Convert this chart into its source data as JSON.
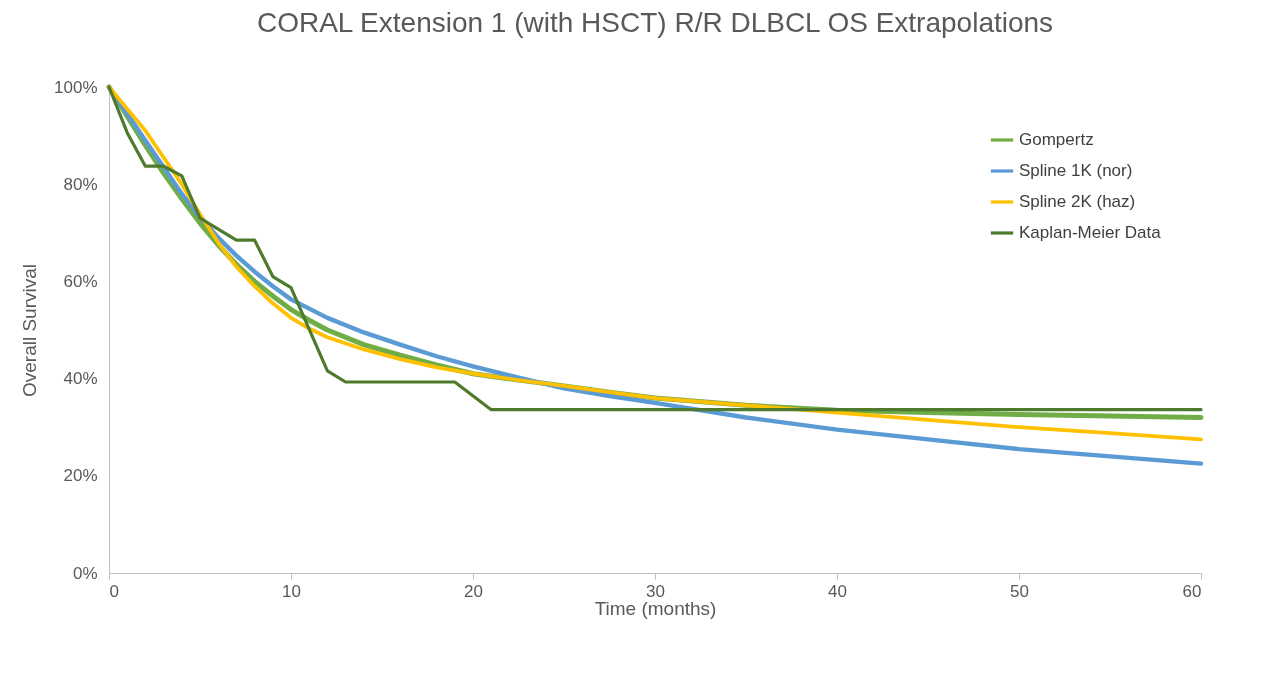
{
  "chart_data": {
    "type": "line",
    "title": "CORAL Extension 1 (with HSCT) R/R DLBCL OS Extrapolations",
    "xlabel": "Time (months)",
    "ylabel": "Overall Survival",
    "xlim": [
      0,
      60
    ],
    "xticks": [
      0,
      10,
      20,
      30,
      40,
      50,
      60
    ],
    "ylim": [
      0,
      100
    ],
    "yticks": [
      {
        "value": 0,
        "label": "0%"
      },
      {
        "value": 20,
        "label": "20%"
      },
      {
        "value": 40,
        "label": "40%"
      },
      {
        "value": 60,
        "label": "60%"
      },
      {
        "value": 80,
        "label": "80%"
      },
      {
        "value": 100,
        "label": "100%"
      }
    ],
    "legend": "top right",
    "grid": false,
    "marker": "none",
    "series": [
      {
        "name": "Gompertz",
        "color": "#70ad47",
        "x": [
          0,
          1,
          2,
          3,
          4,
          5,
          6,
          7,
          8,
          9,
          10,
          11,
          12,
          14,
          16,
          18,
          20,
          22.5,
          25,
          27.5,
          30,
          35,
          40,
          45,
          50,
          55,
          60
        ],
        "values": [
          100,
          94,
          88,
          82.3,
          77,
          72,
          67.5,
          63.5,
          60,
          57,
          54.2,
          52,
          50,
          47,
          44.8,
          42.8,
          41,
          39.7,
          38.5,
          37.2,
          36,
          34.5,
          33.5,
          33,
          32.6,
          32.3,
          32
        ]
      },
      {
        "name": "Spline 1K (nor)",
        "color": "#5b9bd5",
        "x": [
          0,
          1,
          2,
          3,
          4,
          5,
          6,
          7,
          8,
          9,
          10,
          11,
          12,
          14,
          16,
          18,
          20,
          22.5,
          25,
          27.5,
          30,
          35,
          40,
          45,
          50,
          55,
          60
        ],
        "values": [
          100,
          94.5,
          89,
          83.5,
          78,
          73.3,
          69,
          65.3,
          62,
          59,
          56.3,
          54.4,
          52.5,
          49.5,
          47,
          44.6,
          42.5,
          40.2,
          38,
          36.4,
          35,
          32,
          29.5,
          27.5,
          25.5,
          24,
          22.5
        ]
      },
      {
        "name": "Spline 2K (haz)",
        "color": "#ffc000",
        "x": [
          0,
          1,
          2,
          3,
          4,
          5,
          6,
          7,
          8,
          9,
          10,
          11,
          12,
          14,
          16,
          18,
          20,
          22.5,
          25,
          27.5,
          30,
          35,
          40,
          45,
          50,
          55,
          60
        ],
        "values": [
          100,
          95.5,
          91,
          85.5,
          80,
          73.8,
          68,
          63,
          59,
          55.5,
          52.5,
          50.3,
          48.5,
          46,
          44,
          42.3,
          41,
          39.7,
          38.5,
          37.2,
          36,
          34.5,
          33,
          31.5,
          30,
          28.8,
          27.5
        ]
      },
      {
        "name": "Kaplan-Meier Data",
        "color": "#4e7a2d",
        "x": [
          0,
          1,
          2,
          3,
          4,
          5,
          7,
          8,
          9,
          10,
          12,
          13,
          19,
          21,
          60
        ],
        "values": [
          100,
          90.6,
          83.7,
          83.7,
          81.7,
          73,
          68.5,
          68.5,
          61,
          58.7,
          41.6,
          39.3,
          39.3,
          33.6,
          33.6
        ]
      }
    ]
  }
}
